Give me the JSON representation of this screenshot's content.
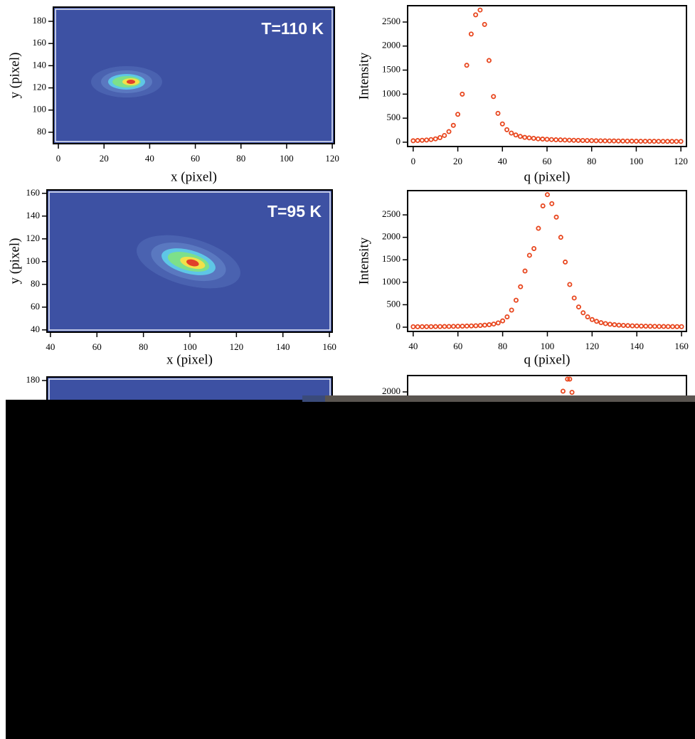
{
  "chart_data": [
    {
      "type": "heatmap",
      "annotation": "T=110 K",
      "xlabel": "x (pixel)",
      "ylabel": "y (pixel)",
      "xlim": [
        -2.2,
        120.9
      ],
      "ylim": [
        69.7,
        192.8
      ],
      "xticks": [
        0,
        20,
        40,
        60,
        80,
        100,
        120
      ],
      "yticks": [
        80,
        100,
        120,
        140,
        160,
        180
      ]
    },
    {
      "type": "scatter",
      "xlabel": "q (pixel)",
      "ylabel": "Intensity",
      "color": "#e8461e",
      "xlim": [
        -2.5,
        122.5
      ],
      "ylim": [
        -90,
        2840
      ],
      "xticks": [
        0,
        20,
        40,
        60,
        80,
        100,
        120
      ],
      "yticks": [
        0,
        500,
        1000,
        1500,
        2000,
        2500
      ],
      "x": [
        0,
        2,
        4,
        6,
        8,
        10,
        12,
        14,
        16,
        18,
        20,
        22,
        24,
        26,
        28,
        30,
        32,
        34,
        36,
        38,
        40,
        42,
        44,
        46,
        48,
        50,
        52,
        54,
        56,
        58,
        60,
        62,
        64,
        66,
        68,
        70,
        72,
        74,
        76,
        78,
        80,
        82,
        84,
        86,
        88,
        90,
        92,
        94,
        96,
        98,
        100,
        102,
        104,
        106,
        108,
        110,
        112,
        114,
        116,
        118,
        120
      ],
      "values": [
        30,
        35,
        40,
        45,
        55,
        70,
        95,
        140,
        220,
        350,
        580,
        1000,
        1600,
        2250,
        2650,
        2750,
        2450,
        1700,
        950,
        600,
        380,
        260,
        190,
        150,
        120,
        100,
        90,
        80,
        70,
        65,
        60,
        55,
        50,
        48,
        45,
        42,
        40,
        38,
        36,
        34,
        32,
        30,
        29,
        28,
        27,
        26,
        25,
        24,
        23,
        22,
        21,
        20,
        20,
        19,
        19,
        18,
        18,
        17,
        17,
        16,
        16
      ]
    },
    {
      "type": "heatmap",
      "annotation": "T=95 K",
      "xlabel": "x (pixel)",
      "ylabel": "y (pixel)",
      "xlim": [
        38.5,
        161.2
      ],
      "ylim": [
        38,
        163
      ],
      "xticks": [
        40,
        60,
        80,
        100,
        120,
        140,
        160
      ],
      "yticks": [
        40,
        60,
        80,
        100,
        120,
        140,
        160
      ]
    },
    {
      "type": "scatter",
      "xlabel": "q (pixel)",
      "ylabel": "Intensity",
      "color": "#e8461e",
      "xlim": [
        37.5,
        162.2
      ],
      "ylim": [
        -95,
        3040
      ],
      "xticks": [
        40,
        60,
        80,
        100,
        120,
        140,
        160
      ],
      "yticks": [
        0,
        500,
        1000,
        1500,
        2000,
        2500
      ],
      "x": [
        40,
        42,
        44,
        46,
        48,
        50,
        52,
        54,
        56,
        58,
        60,
        62,
        64,
        66,
        68,
        70,
        72,
        74,
        76,
        78,
        80,
        82,
        84,
        86,
        88,
        90,
        92,
        94,
        96,
        98,
        100,
        102,
        104,
        106,
        108,
        110,
        112,
        114,
        116,
        118,
        120,
        122,
        124,
        126,
        128,
        130,
        132,
        134,
        136,
        138,
        140,
        142,
        144,
        146,
        148,
        150,
        152,
        154,
        156,
        158,
        160
      ],
      "values": [
        10,
        10,
        11,
        12,
        12,
        13,
        14,
        15,
        16,
        18,
        20,
        22,
        25,
        28,
        32,
        38,
        45,
        55,
        70,
        95,
        140,
        230,
        380,
        600,
        900,
        1250,
        1600,
        1750,
        2200,
        2700,
        2950,
        2750,
        2450,
        2000,
        1450,
        950,
        650,
        450,
        320,
        230,
        170,
        130,
        100,
        80,
        65,
        55,
        45,
        40,
        35,
        30,
        27,
        24,
        22,
        20,
        18,
        16,
        15,
        14,
        13,
        12,
        12
      ]
    },
    {
      "type": "heatmap",
      "ylim": [
        60,
        183.2
      ],
      "yticks": [
        180
      ]
    },
    {
      "type": "scatter",
      "color": "#e8461e",
      "xlim": [
        37.5,
        162.2
      ],
      "ylim": [
        -770,
        2364
      ],
      "yticks": [
        2000
      ],
      "x": [
        107,
        109,
        110,
        111
      ],
      "values": [
        2016,
        2285,
        2285,
        1990
      ]
    }
  ]
}
